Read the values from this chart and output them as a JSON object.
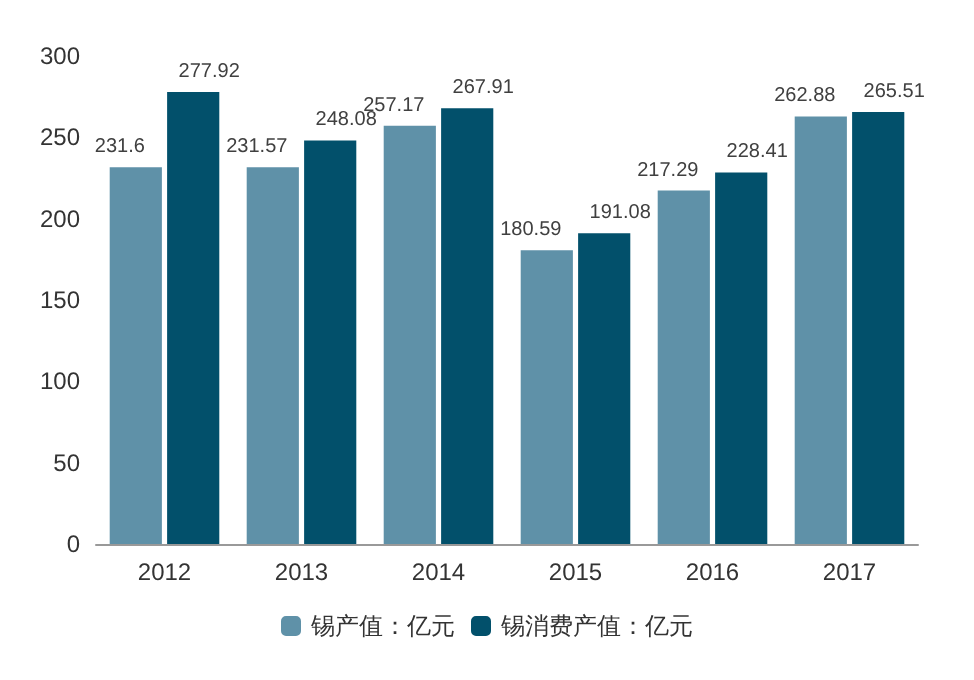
{
  "chart_data": {
    "type": "bar",
    "categories": [
      "2012",
      "2013",
      "2014",
      "2015",
      "2016",
      "2017"
    ],
    "series": [
      {
        "name": "锡产值：亿元",
        "color": "#5f91a8",
        "values": [
          231.6,
          231.57,
          257.17,
          180.59,
          217.29,
          262.88
        ]
      },
      {
        "name": "锡消费产值：亿元",
        "color": "#02506b",
        "values": [
          277.92,
          248.08,
          267.91,
          191.08,
          228.41,
          265.51
        ]
      }
    ],
    "ylim": [
      0,
      300
    ],
    "yticks": [
      0,
      50,
      100,
      150,
      200,
      250,
      300
    ],
    "grid": false,
    "legend": "bottom",
    "data_labels": true
  }
}
